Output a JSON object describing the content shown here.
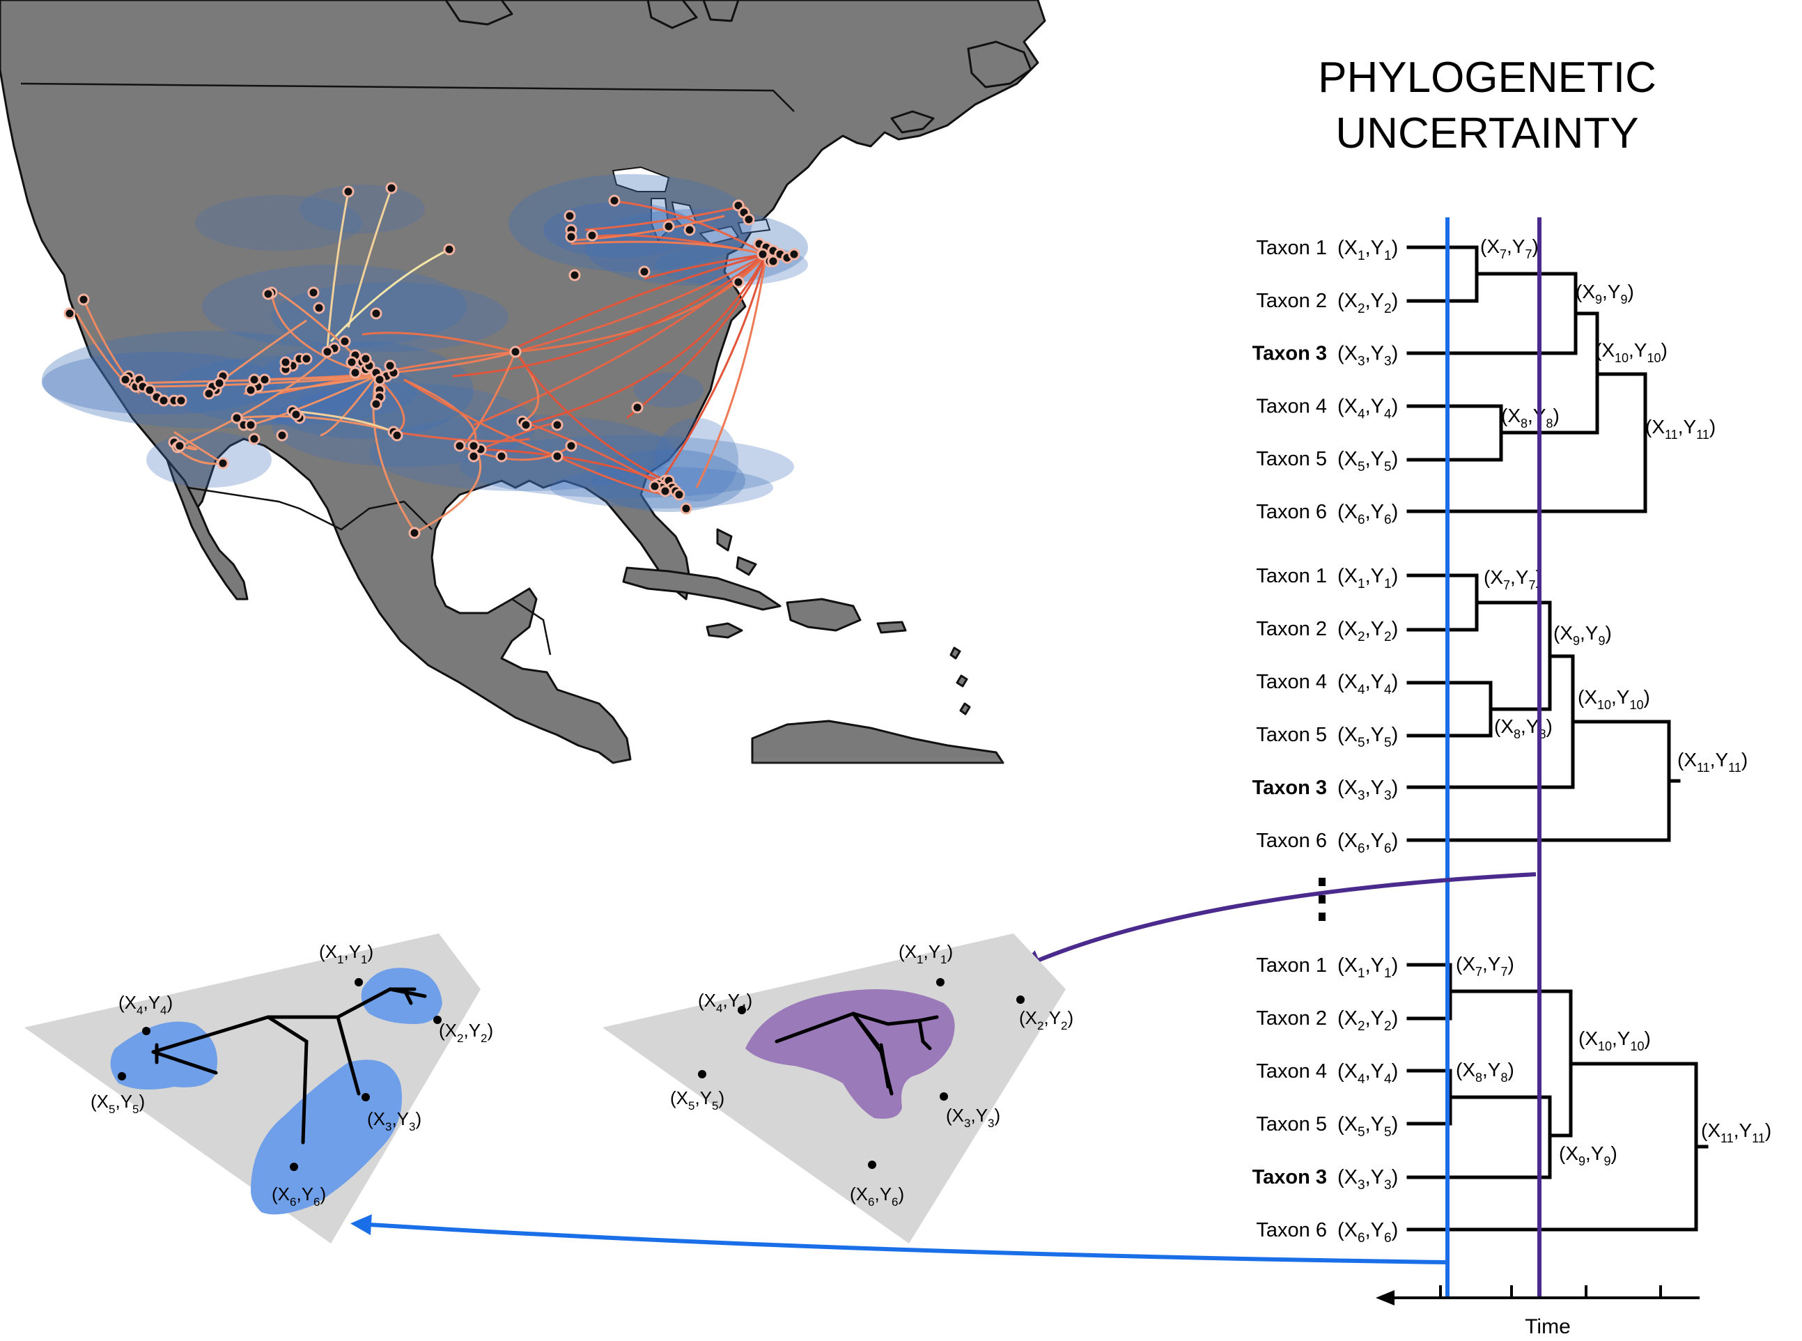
{
  "title": {
    "line1": "PHYLOGENETIC",
    "line2": "UNCERTAINTY"
  },
  "colors": {
    "land": "#7a7a7a",
    "sea": "#ffffff",
    "density": "#3f6fb8",
    "migration_low": "#f0e0a0",
    "migration_high": "#e2553a",
    "blue_time": "#1a6fe8",
    "purple_time": "#4a2a8c",
    "blue_range": "#6f9fe8",
    "purple_range": "#9a7ab8",
    "plane": "#d6d6d6"
  },
  "trees": [
    {
      "taxa": [
        {
          "name": "Taxon 1",
          "bold": false,
          "x": "X",
          "y": "Y",
          "sub": "1"
        },
        {
          "name": "Taxon 2",
          "bold": false,
          "x": "X",
          "y": "Y",
          "sub": "2"
        },
        {
          "name": "Taxon 3",
          "bold": true,
          "x": "X",
          "y": "Y",
          "sub": "3"
        },
        {
          "name": "Taxon 4",
          "bold": false,
          "x": "X",
          "y": "Y",
          "sub": "4"
        },
        {
          "name": "Taxon 5",
          "bold": false,
          "x": "X",
          "y": "Y",
          "sub": "5"
        },
        {
          "name": "Taxon 6",
          "bold": false,
          "x": "X",
          "y": "Y",
          "sub": "6"
        }
      ],
      "nodes": [
        "7",
        "8",
        "9",
        "10",
        "11"
      ]
    },
    {
      "taxa": [
        {
          "name": "Taxon 1",
          "bold": false,
          "x": "X",
          "y": "Y",
          "sub": "1"
        },
        {
          "name": "Taxon 2",
          "bold": false,
          "x": "X",
          "y": "Y",
          "sub": "2"
        },
        {
          "name": "Taxon 4",
          "bold": false,
          "x": "X",
          "y": "Y",
          "sub": "4"
        },
        {
          "name": "Taxon 5",
          "bold": false,
          "x": "X",
          "y": "Y",
          "sub": "5"
        },
        {
          "name": "Taxon 3",
          "bold": true,
          "x": "X",
          "y": "Y",
          "sub": "3"
        },
        {
          "name": "Taxon 6",
          "bold": false,
          "x": "X",
          "y": "Y",
          "sub": "6"
        }
      ],
      "nodes": [
        "7",
        "8",
        "9",
        "10",
        "11"
      ]
    },
    {
      "taxa": [
        {
          "name": "Taxon 1",
          "bold": false,
          "x": "X",
          "y": "Y",
          "sub": "1"
        },
        {
          "name": "Taxon 2",
          "bold": false,
          "x": "X",
          "y": "Y",
          "sub": "2"
        },
        {
          "name": "Taxon 4",
          "bold": false,
          "x": "X",
          "y": "Y",
          "sub": "4"
        },
        {
          "name": "Taxon 5",
          "bold": false,
          "x": "X",
          "y": "Y",
          "sub": "5"
        },
        {
          "name": "Taxon 3",
          "bold": true,
          "x": "X",
          "y": "Y",
          "sub": "3"
        },
        {
          "name": "Taxon 6",
          "bold": false,
          "x": "X",
          "y": "Y",
          "sub": "6"
        }
      ],
      "nodes": [
        "7",
        "8",
        "9",
        "10",
        "11"
      ]
    }
  ],
  "time_axis": {
    "label": "Time",
    "tick_count": 5
  },
  "planes": {
    "blue": {
      "points": [
        "1",
        "2",
        "3",
        "4",
        "5",
        "6"
      ]
    },
    "purple": {
      "points": [
        "1",
        "2",
        "3",
        "4",
        "5",
        "6"
      ]
    }
  }
}
